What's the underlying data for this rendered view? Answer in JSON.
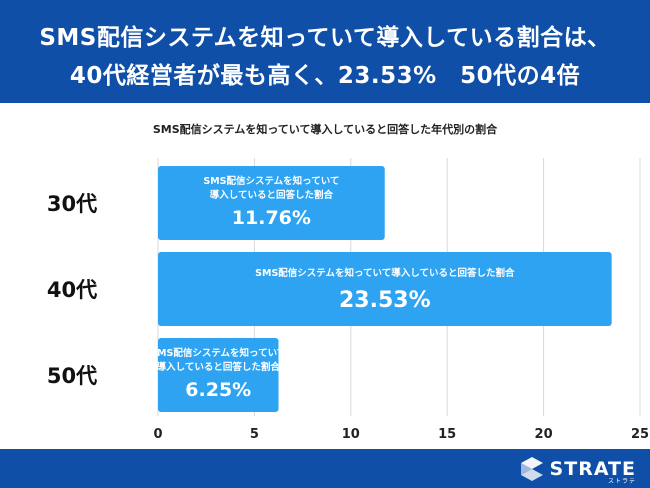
{
  "header": {
    "line1": "SMS配信システムを知っていて導入している割合は、",
    "line2": "40代経営者が最も高く、23.53%　50代の4倍"
  },
  "chart_data": {
    "type": "bar",
    "orientation": "horizontal",
    "title": "SMS配信システムを知っていて導入していると回答した年代別の割合",
    "categories": [
      "30代",
      "40代",
      "50代"
    ],
    "values": [
      11.76,
      23.53,
      6.25
    ],
    "value_labels": [
      "11.76%",
      "23.53%",
      "6.25%"
    ],
    "bar_caption_line1": [
      "SMS配信システムを知っていて",
      "SMS配信システムを知っていて導入していると回答した割合",
      "SMS配信システムを知っていて"
    ],
    "bar_caption_line2": [
      "導入していると回答した割合",
      "",
      "導入していると回答した割合"
    ],
    "xlim": [
      0,
      25
    ],
    "xticks": [
      0,
      5,
      10,
      15,
      20,
      25
    ],
    "grid": true,
    "bar_color": "#2ea3f2"
  },
  "footer": {
    "logo_text": "STRATE",
    "logo_sub": "ストラテ"
  }
}
